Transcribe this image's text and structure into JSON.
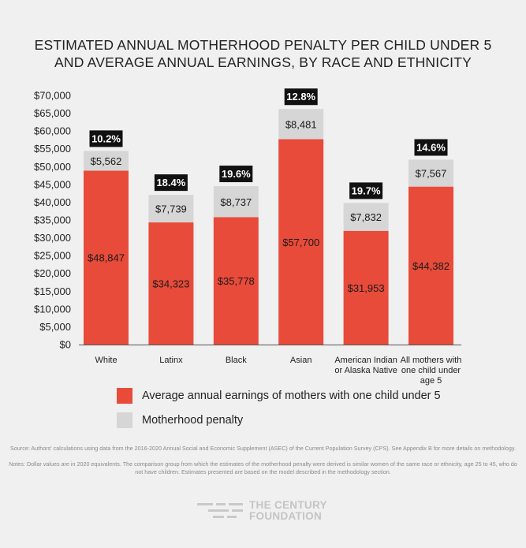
{
  "title_lines": [
    "ESTIMATED ANNUAL MOTHERHOOD PENALTY PER CHILD UNDER 5",
    "AND AVERAGE ANNUAL EARNINGS, BY RACE AND ETHNICITY"
  ],
  "colors": {
    "earnings": "#e84b3a",
    "penalty": "#d6d6d6",
    "badge": "#111111",
    "background": "#f0f0f0"
  },
  "legend": {
    "earnings_label": "Average annual earnings of mothers with one child under 5",
    "penalty_label": "Motherhood penalty"
  },
  "source": "Source: Authors' calculations using data from the 2016-2020 Annual Social and Economic Supplement (ASEC) of the Current Population Survey (CPS). See Appendix B for more details on methodology.",
  "notes": "Notes: Dollar values are in 2020 equivalents. The comparison group from which the estimates of the motherhood penalty were derived is similar women of the same race or ethnicity, age 25 to 45, who do not have children. Estimates presented are based on the model described in the methodology section.",
  "logo": {
    "line1": "THE CENTURY",
    "line2": "FOUNDATION"
  },
  "chart_data": {
    "type": "bar",
    "stacked": true,
    "categories": [
      [
        "White"
      ],
      [
        "Latinx"
      ],
      [
        "Black"
      ],
      [
        "Asian"
      ],
      [
        "American Indian",
        "or Alaska Native"
      ],
      [
        "All mothers with",
        "one child under",
        "age 5"
      ]
    ],
    "series": [
      {
        "name": "Average annual earnings of mothers with one child under 5",
        "values": [
          48847,
          34323,
          35778,
          57700,
          31953,
          44382
        ],
        "labels": [
          "$48,847",
          "$34,323",
          "$35,778",
          "$57,700",
          "$31,953",
          "$44,382"
        ]
      },
      {
        "name": "Motherhood penalty",
        "values": [
          5562,
          7739,
          8737,
          8481,
          7832,
          7567
        ],
        "labels": [
          "$5,562",
          "$7,739",
          "$8,737",
          "$8,481",
          "$7,832",
          "$7,567"
        ]
      }
    ],
    "penalty_percent_labels": [
      "10.2%",
      "18.4%",
      "19.6%",
      "12.8%",
      "19.7%",
      "14.6%"
    ],
    "y_ticks": [
      0,
      5000,
      10000,
      15000,
      20000,
      25000,
      30000,
      35000,
      40000,
      45000,
      50000,
      55000,
      60000,
      65000,
      70000
    ],
    "y_tick_labels": [
      "$0",
      "$5,000",
      "$10,000",
      "$15,000",
      "$20,000",
      "$25,000",
      "$30,000",
      "$35,000",
      "$40,000",
      "$45,000",
      "$50,000",
      "$55,000",
      "$60,000",
      "$65,000",
      "$70,000"
    ],
    "ylim": [
      0,
      70000
    ],
    "grid": false,
    "legend_position": "bottom"
  }
}
